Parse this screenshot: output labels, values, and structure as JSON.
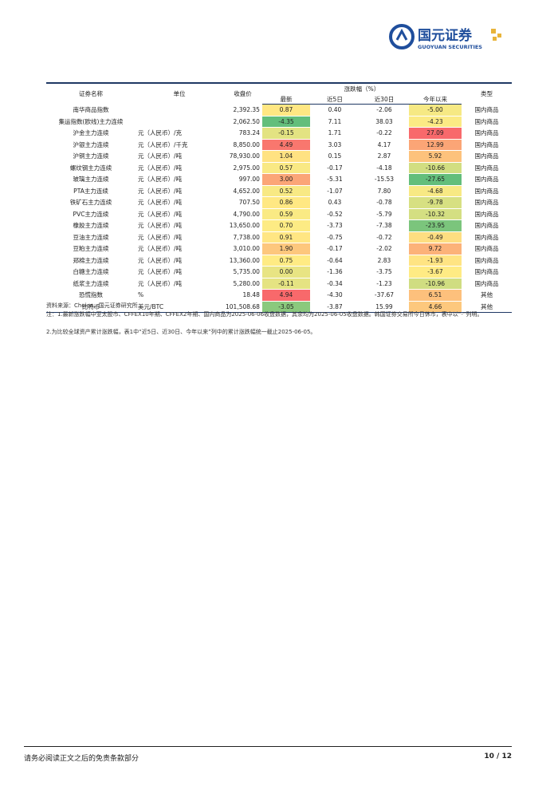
{
  "header": {
    "logo_cn": "国元证券",
    "logo_en": "GUOYUAN SECURITIES"
  },
  "table": {
    "columns": [
      "证券名称",
      "单位",
      "收盘价",
      "涨跌幅（%）",
      "类型"
    ],
    "sub_columns": [
      "最新",
      "近5日",
      "近30日",
      "今年以来"
    ],
    "rows": [
      [
        "南华商品指数",
        null,
        "2,392.35",
        "0.87",
        "0.40",
        "-2.06",
        "-5.00",
        "国内商品"
      ],
      [
        "集运指数(欧线)主力连续",
        null,
        "2,062.50",
        "-4.35",
        "7.11",
        "38.03",
        "-4.23",
        "国内商品"
      ],
      [
        "沪金主力连续",
        "元（人民币）/克",
        "783.24",
        "-0.15",
        "1.71",
        "-0.22",
        "27.09",
        "国内商品"
      ],
      [
        "沪银主力连续",
        "元（人民币）/千克",
        "8,850.00",
        "4.49",
        "3.03",
        "4.17",
        "12.99",
        "国内商品"
      ],
      [
        "沪铜主力连续",
        "元（人民币）/吨",
        "78,930.00",
        "1.04",
        "0.15",
        "2.87",
        "5.92",
        "国内商品"
      ],
      [
        "螺纹钢主力连续",
        "元（人民币）/吨",
        "2,975.00",
        "0.57",
        "-0.17",
        "-4.18",
        "-10.66",
        "国内商品"
      ],
      [
        "玻璃主力连续",
        "元（人民币）/吨",
        "997.00",
        "3.00",
        "-5.31",
        "-15.53",
        "-27.65",
        "国内商品"
      ],
      [
        "PTA主力连续",
        "元（人民币）/吨",
        "4,652.00",
        "0.52",
        "-1.07",
        "7.80",
        "-4.68",
        "国内商品"
      ],
      [
        "铁矿石主力连续",
        "元（人民币）/吨",
        "707.50",
        "0.86",
        "0.43",
        "-0.78",
        "-9.78",
        "国内商品"
      ],
      [
        "PVC主力连续",
        "元（人民币）/吨",
        "4,790.00",
        "0.59",
        "-0.52",
        "-5.79",
        "-10.32",
        "国内商品"
      ],
      [
        "橡胶主力连续",
        "元（人民币）/吨",
        "13,650.00",
        "0.70",
        "-3.73",
        "-7.38",
        "-23.95",
        "国内商品"
      ],
      [
        "豆油主力连续",
        "元（人民币）/吨",
        "7,738.00",
        "0.91",
        "-0.75",
        "-0.72",
        "-0.49",
        "国内商品"
      ],
      [
        "豆粕主力连续",
        "元（人民币）/吨",
        "3,010.00",
        "1.90",
        "-0.17",
        "-2.02",
        "9.72",
        "国内商品"
      ],
      [
        "郑棉主力连续",
        "元（人民币）/吨",
        "13,360.00",
        "0.75",
        "-0.64",
        "2.83",
        "-1.93",
        "国内商品"
      ],
      [
        "白糖主力连续",
        "元（人民币）/吨",
        "5,735.00",
        "0.00",
        "-1.36",
        "-3.75",
        "-3.67",
        "国内商品"
      ],
      [
        "纸浆主力连续",
        "元（人民币）/吨",
        "5,280.00",
        "-0.11",
        "-0.34",
        "-1.23",
        "-10.96",
        "国内商品"
      ],
      [
        "恐慌指数",
        "%",
        "18.48",
        "4.94",
        "-4.30",
        "-37.67",
        "6.51",
        "其他"
      ],
      [
        "比特币",
        "美元/BTC",
        "101,508.68",
        "-3.05",
        "-3.87",
        "15.99",
        "4.66",
        "其他"
      ]
    ]
  },
  "notes": {
    "source": "资料来源：Choice，国元证券研究所",
    "note1": "注：1.最新涨跌幅中亚太股市、CFFEX10年期、CFFEX2年期、国内商品为2025-06-06收盘数据，其余均为2025-06-05收盘数据。韩国证券交易所今日休市，表中以“-”列明。",
    "note2": "2.为比较全球资产累计涨跌幅，表1中“近5日、近30日、今年以来”列中的累计涨跌幅统一截止2025-06-05。"
  },
  "footer": {
    "disclaimer": "请务必阅读正文之后的免责条款部分",
    "page": "10 / 12"
  }
}
